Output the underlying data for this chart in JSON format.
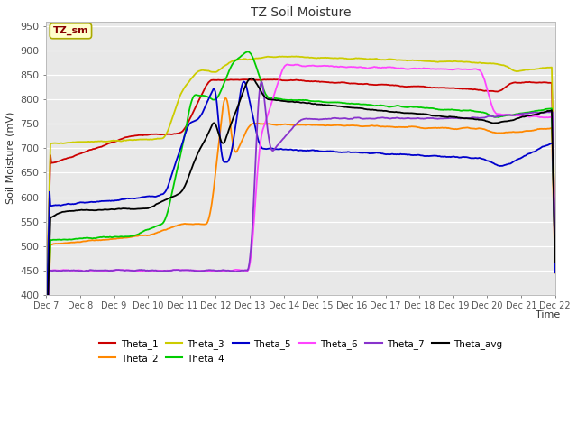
{
  "title": "TZ Soil Moisture",
  "ylabel": "Soil Moisture (mV)",
  "xlabel": "Time",
  "ylim": [
    400,
    960
  ],
  "yticks": [
    400,
    450,
    500,
    550,
    600,
    650,
    700,
    750,
    800,
    850,
    900,
    950
  ],
  "figsize": [
    6.4,
    4.8
  ],
  "dpi": 100,
  "fig_bg": "#ffffff",
  "plot_bg": "#e8e8e8",
  "grid_color": "#ffffff",
  "colors": {
    "Theta_1": "#cc0000",
    "Theta_2": "#ff8800",
    "Theta_3": "#cccc00",
    "Theta_4": "#00cc00",
    "Theta_5": "#0000cc",
    "Theta_6": "#ff44ff",
    "Theta_7": "#8833cc",
    "Theta_avg": "#000000"
  },
  "x_tick_labels": [
    "Dec 7",
    "Dec 8",
    "Dec 9",
    "Dec 10",
    "Dec 11",
    "Dec 12",
    "Dec 13",
    "Dec 14",
    "Dec 15",
    "Dec 16",
    "Dec 17",
    "Dec 18",
    "Dec 19",
    "Dec 20",
    "Dec 21",
    "Dec 22"
  ],
  "legend_label": "TZ_sm",
  "lw": 1.3,
  "num_points": 600
}
